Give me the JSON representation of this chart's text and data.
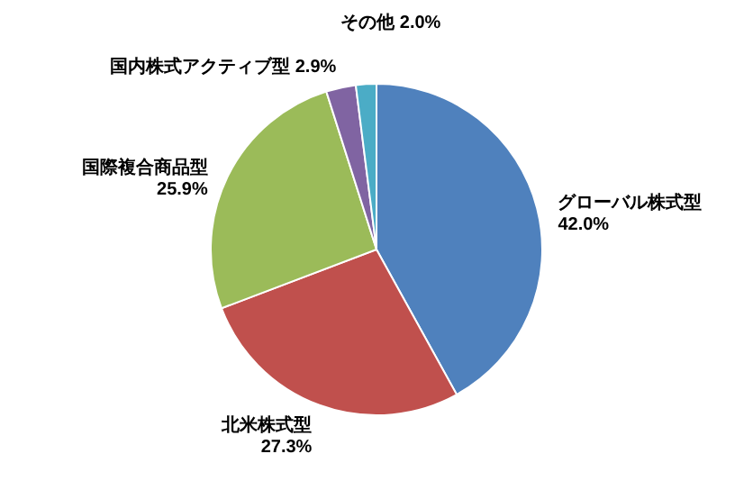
{
  "chart_data": {
    "type": "pie",
    "categories": [
      "グローバル株式型",
      "北米株式型",
      "国際複合商品型",
      "国内株式アクティブ型",
      "その他"
    ],
    "values": [
      42.0,
      27.3,
      25.9,
      2.9,
      2.0
    ],
    "colors": [
      "#4f81bd",
      "#c0504d",
      "#9bbb59",
      "#8064a2",
      "#4bacc6"
    ],
    "value_labels": [
      "42.0%",
      "27.3%",
      "25.9%",
      "2.9%",
      "2.0%"
    ]
  }
}
